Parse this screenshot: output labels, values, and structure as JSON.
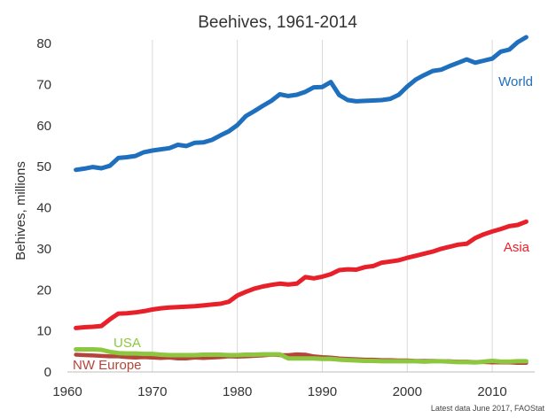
{
  "chart_data": {
    "type": "line",
    "title": "Beehives, 1961-2014",
    "xlabel": "",
    "ylabel": "Behives, millions",
    "xlim": [
      1960,
      2015
    ],
    "ylim": [
      0,
      80
    ],
    "x_ticks": [
      1960,
      1970,
      1980,
      1990,
      2000,
      2010
    ],
    "y_ticks": [
      0,
      10,
      20,
      30,
      40,
      50,
      60,
      70,
      80
    ],
    "grid": "vertical",
    "x": [
      1961,
      1962,
      1963,
      1964,
      1965,
      1966,
      1967,
      1968,
      1969,
      1970,
      1971,
      1972,
      1973,
      1974,
      1975,
      1976,
      1977,
      1978,
      1979,
      1980,
      1981,
      1982,
      1983,
      1984,
      1985,
      1986,
      1987,
      1988,
      1989,
      1990,
      1991,
      1992,
      1993,
      1994,
      1995,
      1996,
      1997,
      1998,
      1999,
      2000,
      2001,
      2002,
      2003,
      2004,
      2005,
      2006,
      2007,
      2008,
      2009,
      2010,
      2011,
      2012,
      2013,
      2014
    ],
    "series": [
      {
        "name": "World",
        "color": "#1f6fbf",
        "values": [
          49.2,
          49.5,
          49.9,
          49.6,
          50.2,
          52.1,
          52.3,
          52.6,
          53.5,
          53.9,
          54.2,
          54.5,
          55.3,
          55.0,
          55.8,
          55.9,
          56.5,
          57.6,
          58.6,
          60.1,
          62.3,
          63.5,
          64.8,
          66.0,
          67.6,
          67.2,
          67.5,
          68.2,
          69.3,
          69.4,
          70.6,
          67.4,
          66.2,
          65.9,
          66.0,
          66.1,
          66.2,
          66.5,
          67.5,
          69.5,
          71.2,
          72.3,
          73.3,
          73.6,
          74.5,
          75.3,
          76.1,
          75.3,
          75.8,
          76.3,
          78.0,
          78.5,
          80.3,
          81.5
        ]
      },
      {
        "name": "Asia",
        "color": "#e8202a",
        "values": [
          10.7,
          10.9,
          11.0,
          11.2,
          12.8,
          14.2,
          14.3,
          14.5,
          14.8,
          15.2,
          15.5,
          15.7,
          15.8,
          15.9,
          16.0,
          16.2,
          16.4,
          16.6,
          17.1,
          18.6,
          19.5,
          20.3,
          20.8,
          21.2,
          21.5,
          21.3,
          21.5,
          23.1,
          22.8,
          23.2,
          23.8,
          24.8,
          25.0,
          24.9,
          25.5,
          25.8,
          26.6,
          26.9,
          27.2,
          27.8,
          28.3,
          28.8,
          29.3,
          30.0,
          30.5,
          31.0,
          31.2,
          32.6,
          33.5,
          34.2,
          34.8,
          35.5,
          35.8,
          36.6
        ]
      },
      {
        "name": "USA",
        "color": "#8dc63f",
        "values": [
          5.5,
          5.5,
          5.5,
          5.4,
          4.9,
          4.6,
          4.5,
          4.5,
          4.4,
          4.4,
          4.2,
          4.1,
          4.1,
          4.1,
          4.1,
          4.2,
          4.2,
          4.2,
          4.1,
          4.1,
          4.2,
          4.2,
          4.3,
          4.3,
          4.3,
          3.3,
          3.3,
          3.3,
          3.3,
          3.2,
          3.2,
          3.0,
          2.9,
          2.8,
          2.7,
          2.7,
          2.6,
          2.6,
          2.6,
          2.6,
          2.6,
          2.5,
          2.6,
          2.6,
          2.5,
          2.4,
          2.4,
          2.3,
          2.5,
          2.7,
          2.5,
          2.5,
          2.6,
          2.6
        ]
      },
      {
        "name": "NW Europe",
        "color": "#b5453a",
        "values": [
          4.2,
          4.1,
          4.0,
          3.9,
          3.8,
          3.8,
          3.6,
          3.5,
          3.6,
          3.5,
          3.4,
          3.5,
          3.3,
          3.3,
          3.5,
          3.4,
          3.5,
          3.6,
          3.8,
          3.7,
          3.8,
          3.9,
          4.0,
          4.2,
          4.1,
          4.1,
          4.3,
          4.2,
          3.8,
          3.6,
          3.5,
          3.3,
          3.2,
          3.1,
          3.0,
          3.0,
          2.9,
          2.9,
          2.8,
          2.8,
          2.7,
          2.7,
          2.7,
          2.6,
          2.6,
          2.5,
          2.5,
          2.4,
          2.4,
          2.3,
          2.3,
          2.3,
          2.2,
          2.2
        ]
      }
    ],
    "annotations": [
      "Latest data June 2017, FAOStat"
    ]
  }
}
